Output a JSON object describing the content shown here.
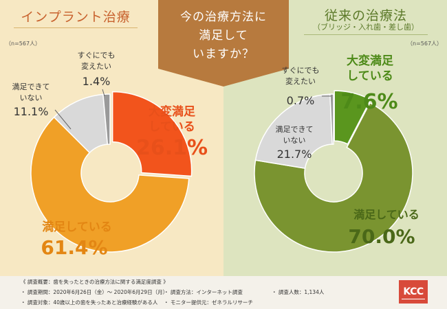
{
  "question": {
    "line1": "今の治療方法に",
    "line2": "満足して",
    "line3": "いますか？"
  },
  "colors": {
    "left_very": "#f2541c",
    "left_satisfied": "#f0a027",
    "left_unsatisfied": "#d9d9d9",
    "left_change": "#9a9a9a",
    "right_very": "#5a961e",
    "right_satisfied": "#7a9430",
    "right_unsatisfied": "#d9d9d9",
    "right_change": "#9a9a9a"
  },
  "chart_data": [
    {
      "type": "pie",
      "title": "インプラント治療",
      "subtitle": "",
      "n_label": "（n=567人）",
      "categories": [
        "大変満足している",
        "満足している",
        "満足できていない",
        "すぐにでも変えたい"
      ],
      "values": [
        26.1,
        61.4,
        11.1,
        1.4
      ],
      "unit": "%",
      "labels": {
        "very": {
          "l1": "大変満足",
          "l2": "している",
          "v": "26.1%"
        },
        "satisfied": {
          "l1": "満足している",
          "v": "61.4%"
        },
        "unsatisfied": {
          "l1": "満足できて",
          "l2": "いない",
          "v": "11.1%"
        },
        "change": {
          "l1": "すぐにでも",
          "l2": "変えたい",
          "v": "1.4%"
        }
      }
    },
    {
      "type": "pie",
      "title": "従来の治療法",
      "subtitle": "（ブリッジ・入れ歯・差し歯）",
      "n_label": "（n=567人）",
      "categories": [
        "大変満足している",
        "満足している",
        "満足できていない",
        "すぐにでも変えたい"
      ],
      "values": [
        7.6,
        70.0,
        21.7,
        0.7
      ],
      "unit": "%",
      "labels": {
        "very": {
          "l1": "大変満足",
          "l2": "している",
          "v": "7.6%"
        },
        "satisfied": {
          "l1": "満足している",
          "v": "70.0%"
        },
        "unsatisfied": {
          "l1": "満足できて",
          "l2": "いない",
          "v": "21.7%"
        },
        "change": {
          "l1": "すぐにでも",
          "l2": "変えたい",
          "v": "0.7%"
        }
      }
    }
  ],
  "footer": {
    "overview": "《 調査概要：歯を失ったときの治療方法に関する満足度調査 》",
    "period": "・ 調査期間：2020年6月26日（金）～ 2020年6月29日（月）",
    "method": "・ 調査方法：インターネット調査",
    "count": "・ 調査人数：1,134人",
    "target": "・ 調査対象：40歳以上の歯を失ったあと治療経験がある人",
    "monitor": "・ モニター提供元：ゼネラルリサーチ"
  },
  "logo": "KCC"
}
